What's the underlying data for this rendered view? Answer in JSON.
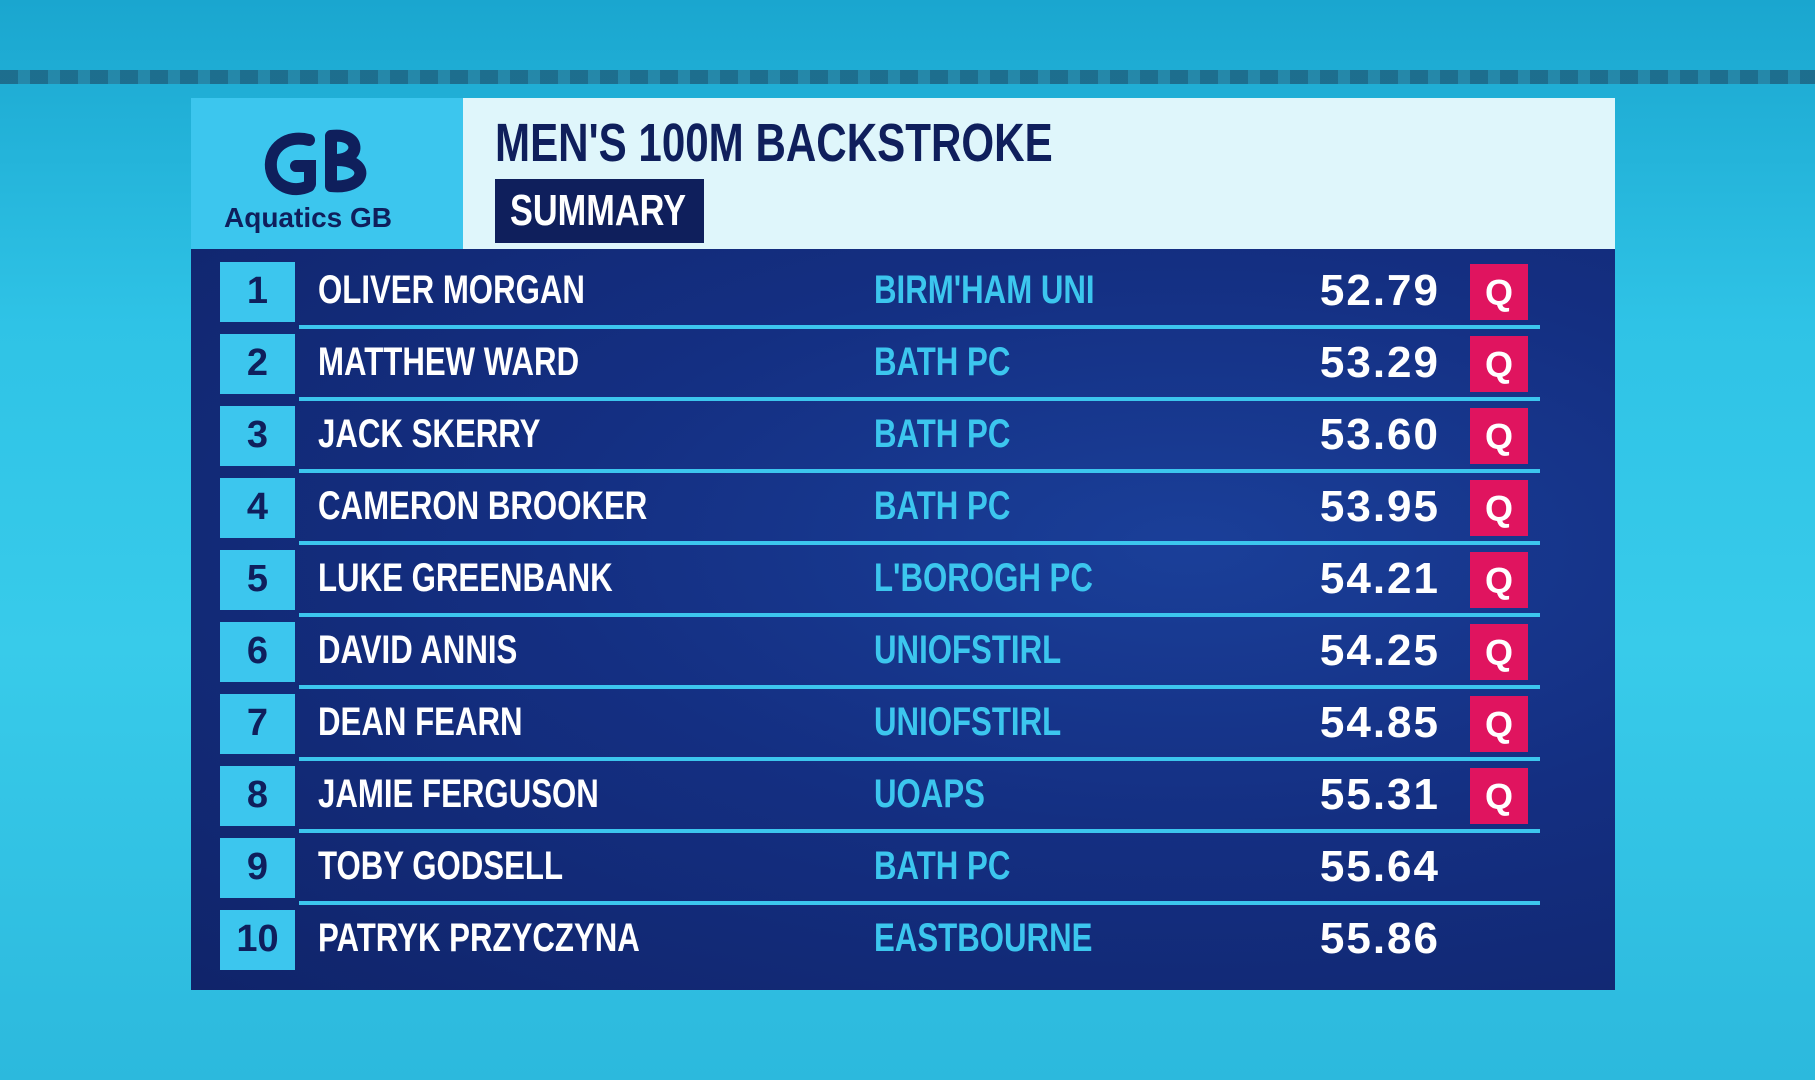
{
  "header": {
    "logo_text": "Aquatics GB",
    "title": "MEN'S 100M BACKSTROKE",
    "subtitle": "SUMMARY"
  },
  "table": {
    "rows": [
      {
        "rank": 1,
        "name": "OLIVER MORGAN",
        "club": "BIRM'HAM UNI",
        "time": "52.79",
        "status": "Q"
      },
      {
        "rank": 2,
        "name": "MATTHEW WARD",
        "club": "BATH PC",
        "time": "53.29",
        "status": "Q"
      },
      {
        "rank": 3,
        "name": "JACK SKERRY",
        "club": "BATH PC",
        "time": "53.60",
        "status": "Q"
      },
      {
        "rank": 4,
        "name": "CAMERON BROOKER",
        "club": "BATH PC",
        "time": "53.95",
        "status": "Q"
      },
      {
        "rank": 5,
        "name": "LUKE GREENBANK",
        "club": "L'BOROGH PC",
        "time": "54.21",
        "status": "Q"
      },
      {
        "rank": 6,
        "name": "DAVID ANNIS",
        "club": "UNIOFSTIRL",
        "time": "54.25",
        "status": "Q"
      },
      {
        "rank": 7,
        "name": "DEAN FEARN",
        "club": "UNIOFSTIRL",
        "time": "54.85",
        "status": "Q"
      },
      {
        "rank": 8,
        "name": "JAMIE FERGUSON",
        "club": "UOAPS",
        "time": "55.31",
        "status": "Q"
      },
      {
        "rank": 9,
        "name": "TOBY GODSELL",
        "club": "BATH PC",
        "time": "55.64",
        "status": null
      },
      {
        "rank": 10,
        "name": "PATRYK PRZYCZYNA",
        "club": "EASTBOURNE",
        "time": "55.86",
        "status": null
      }
    ]
  }
}
